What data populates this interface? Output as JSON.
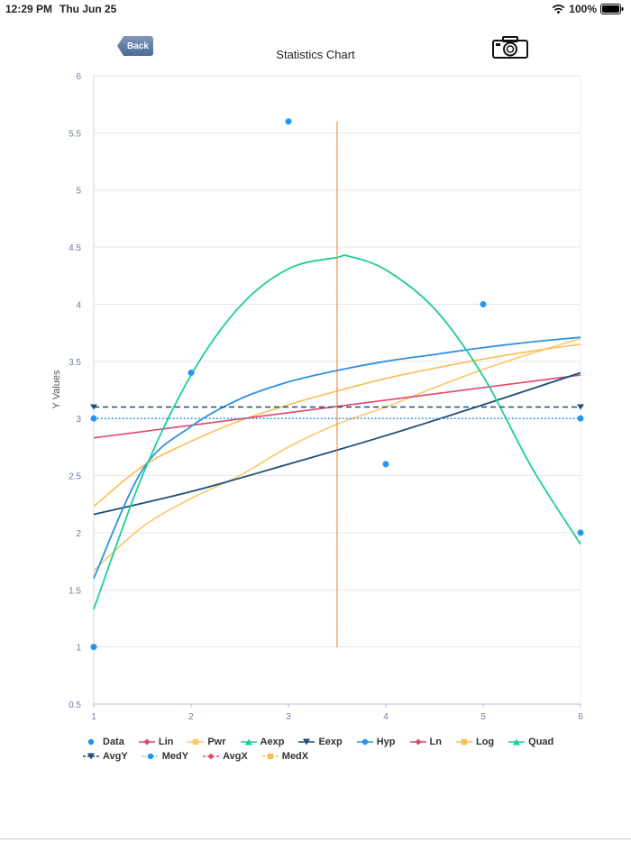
{
  "status_bar": {
    "time": "12:29 PM",
    "date": "Thu Jun 25",
    "battery": "100%"
  },
  "toolbar": {
    "back_label": "Back"
  },
  "chart_data": {
    "type": "scatter",
    "title": "Statistics Chart",
    "xlabel": "",
    "ylabel": "Y Values",
    "xlim": [
      1,
      6
    ],
    "ylim": [
      0.5,
      6
    ],
    "x_ticks": [
      "1",
      "2",
      "3",
      "4",
      "5",
      "6"
    ],
    "y_ticks": [
      "0.5",
      "1",
      "1.5",
      "2",
      "2.5",
      "3",
      "3.5",
      "4",
      "4.5",
      "5",
      "5.5",
      "6"
    ],
    "grid": true,
    "legend_position": "bottom",
    "series": [
      {
        "name": "Data",
        "color": "#2196f3",
        "x": [
          1,
          1,
          2,
          3,
          4,
          5,
          6,
          6
        ],
        "y": [
          1,
          3,
          3.4,
          5.6,
          2.6,
          4,
          3,
          2
        ]
      },
      {
        "name": "Lin",
        "color": "#e0466b",
        "x": [
          1,
          6
        ],
        "y": [
          2.83,
          3.38
        ]
      },
      {
        "name": "Pwr",
        "color": "#fbc96a",
        "x": [
          1,
          1.5,
          2,
          2.5,
          3,
          3.5,
          4,
          4.5,
          5,
          5.5,
          6
        ],
        "y": [
          1.67,
          2.05,
          2.3,
          2.5,
          2.75,
          2.95,
          3.1,
          3.27,
          3.43,
          3.57,
          3.7
        ]
      },
      {
        "name": "Aexp",
        "color": "#1ccf96",
        "x": [
          1,
          1.5,
          2,
          2.5,
          3,
          3.5,
          3.62,
          4,
          4.5,
          5,
          5.5,
          6
        ],
        "y": [
          1.33,
          2.5,
          3.38,
          3.98,
          4.31,
          4.41,
          4.42,
          4.3,
          3.96,
          3.37,
          2.57,
          1.9
        ]
      },
      {
        "name": "Eexp",
        "color": "#1f4e79",
        "x": [
          1,
          2,
          3,
          4,
          5,
          6
        ],
        "y": [
          2.16,
          2.36,
          2.6,
          2.85,
          3.12,
          3.4
        ]
      },
      {
        "name": "Hyp",
        "color": "#2f8fe5",
        "x": [
          1,
          1.5,
          2,
          2.5,
          3,
          3.5,
          4,
          4.5,
          5,
          5.5,
          6
        ],
        "y": [
          1.6,
          2.55,
          2.93,
          3.17,
          3.32,
          3.42,
          3.5,
          3.56,
          3.62,
          3.67,
          3.71
        ]
      },
      {
        "name": "Ln",
        "color": "#e0466b",
        "x": [
          1,
          6
        ],
        "y": [
          2.83,
          3.38
        ]
      },
      {
        "name": "Log",
        "color": "#f9be55",
        "x": [
          1,
          1.5,
          2,
          2.5,
          3,
          3.5,
          4,
          4.5,
          5,
          5.5,
          6
        ],
        "y": [
          2.23,
          2.58,
          2.8,
          2.98,
          3.12,
          3.24,
          3.35,
          3.44,
          3.52,
          3.59,
          3.65
        ]
      },
      {
        "name": "Quad",
        "color": "#1ccf96",
        "x": [],
        "y": []
      },
      {
        "name": "AvgY",
        "color": "#1f4e79",
        "x": [
          1,
          6
        ],
        "y": [
          3.1,
          3.1
        ]
      },
      {
        "name": "MedY",
        "color": "#2196f3",
        "x": [
          1,
          6
        ],
        "y": [
          3,
          3
        ]
      },
      {
        "name": "AvgX",
        "color": "#e0466b",
        "x": [],
        "y": []
      },
      {
        "name": "MedX",
        "color": "#f9a031",
        "x": [
          3.5,
          3.5
        ],
        "y": [
          1,
          5.6
        ]
      }
    ],
    "legend": [
      {
        "label": "Data",
        "color": "#2196f3",
        "style": "dot"
      },
      {
        "label": "Lin",
        "color": "#e0466b",
        "style": "line-diamond"
      },
      {
        "label": "Pwr",
        "color": "#fbc96a",
        "style": "line-square"
      },
      {
        "label": "Aexp",
        "color": "#1ccf96",
        "style": "line-triangle"
      },
      {
        "label": "Eexp",
        "color": "#1f4e79",
        "style": "line-triangle-down"
      },
      {
        "label": "Hyp",
        "color": "#2f8fe5",
        "style": "line-dot"
      },
      {
        "label": "Ln",
        "color": "#e0466b",
        "style": "line-diamond"
      },
      {
        "label": "Log",
        "color": "#f9be55",
        "style": "line-square"
      },
      {
        "label": "Quad",
        "color": "#1ccf96",
        "style": "line-triangle"
      },
      {
        "label": "AvgY",
        "color": "#1f4e79",
        "style": "dash-triangle-down"
      },
      {
        "label": "MedY",
        "color": "#2196f3",
        "style": "dot-dot"
      },
      {
        "label": "AvgX",
        "color": "#e0466b",
        "style": "dash-diamond"
      },
      {
        "label": "MedX",
        "color": "#f9be55",
        "style": "dash-square"
      }
    ]
  }
}
